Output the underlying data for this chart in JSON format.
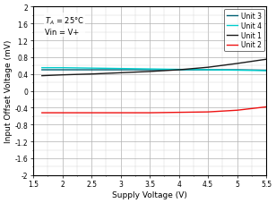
{
  "title": "",
  "xlabel": "Supply Voltage (V)",
  "ylabel": "Input Offset Voltage (mV)",
  "annotation_line1": "T",
  "annotation_line2": "Vin = V+",
  "xlim": [
    1.5,
    5.5
  ],
  "ylim": [
    -2,
    2
  ],
  "yticks": [
    -2,
    -1.6,
    -1.2,
    -0.8,
    -0.4,
    0,
    0.4,
    0.8,
    1.2,
    1.6,
    2
  ],
  "xticks": [
    1.5,
    2,
    2.5,
    3,
    3.5,
    4,
    4.5,
    5,
    5.5
  ],
  "xtick_labels": [
    "1.5",
    "2",
    "2.5",
    "3",
    "3.5",
    "4",
    "4.5",
    "5",
    "5.5"
  ],
  "unit1_color": "#1a1a1a",
  "unit2_color": "#ee1111",
  "unit3_color": "#005f73",
  "unit4_color": "#00cccc",
  "unit1_x": [
    1.65,
    2.0,
    2.5,
    3.0,
    3.5,
    4.0,
    4.5,
    5.0,
    5.5
  ],
  "unit1_y": [
    0.36,
    0.38,
    0.4,
    0.43,
    0.46,
    0.5,
    0.56,
    0.65,
    0.75
  ],
  "unit2_x": [
    1.65,
    2.0,
    2.5,
    3.0,
    3.5,
    4.0,
    4.5,
    5.0,
    5.5
  ],
  "unit2_y": [
    -0.52,
    -0.52,
    -0.52,
    -0.52,
    -0.52,
    -0.51,
    -0.5,
    -0.46,
    -0.38
  ],
  "unit3_x": [
    1.65,
    2.0,
    2.5,
    3.0,
    3.5,
    4.0,
    4.5,
    5.0,
    5.5
  ],
  "unit3_y": [
    0.5,
    0.5,
    0.5,
    0.5,
    0.5,
    0.5,
    0.5,
    0.5,
    0.49
  ],
  "unit4_x": [
    1.65,
    2.0,
    2.5,
    3.0,
    3.5,
    4.0,
    4.5,
    5.0,
    5.5
  ],
  "unit4_y": [
    0.55,
    0.55,
    0.54,
    0.53,
    0.52,
    0.51,
    0.5,
    0.49,
    0.48
  ],
  "legend_labels": [
    "Unit 1",
    "Unit 2",
    "Unit 3",
    "Unit 4"
  ],
  "bg_color": "#ffffff",
  "grid_color": "#b0b0b0",
  "minor_grid_color": "#d0d0d0"
}
